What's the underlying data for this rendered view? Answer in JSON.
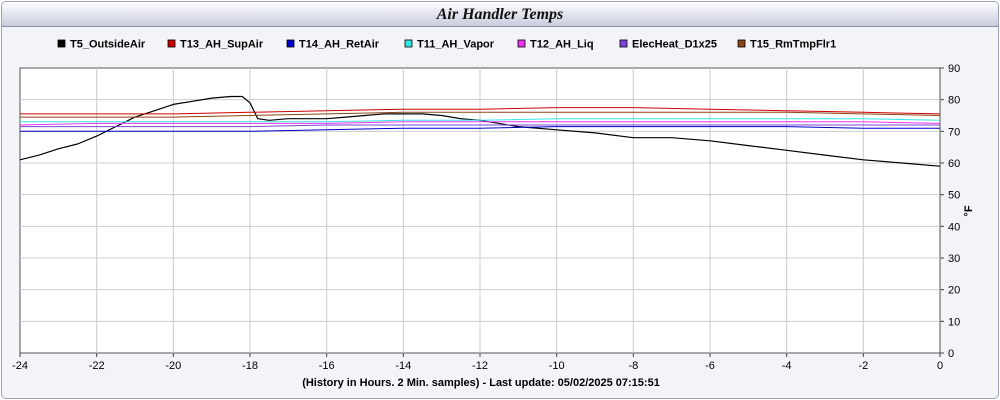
{
  "title": "Air Handler Temps",
  "chart_data": {
    "type": "line",
    "title": "Air Handler Temps",
    "xlabel": "(History in Hours. 2 Min. samples) - Last update: 05/02/2025 07:15:51",
    "ylabel": "°F",
    "xlim": [
      -24,
      0
    ],
    "ylim": [
      0,
      90
    ],
    "x_ticks": [
      "-24",
      "-22",
      "-20",
      "-18",
      "-16",
      "-14",
      "-12",
      "-10",
      "-8",
      "-6",
      "-4",
      "-2",
      "0"
    ],
    "y_ticks": [
      "0",
      "10",
      "20",
      "30",
      "40",
      "50",
      "60",
      "70",
      "80",
      "90"
    ],
    "grid": true,
    "legend_position": "top",
    "series": [
      {
        "name": "T5_OutsideAir",
        "color": "#000000",
        "x": [
          -24,
          -23.5,
          -23,
          -22.5,
          -22,
          -21.5,
          -21,
          -20.5,
          -20,
          -19.5,
          -19,
          -18.5,
          -18.2,
          -18,
          -17.8,
          -17.5,
          -17,
          -16.5,
          -16,
          -15.5,
          -15,
          -14.5,
          -14,
          -13.5,
          -13,
          -12.5,
          -12,
          -11,
          -10,
          -9,
          -8,
          -7,
          -6,
          -5,
          -4,
          -3,
          -2,
          -1,
          0
        ],
        "y": [
          61,
          62.5,
          64.5,
          66,
          68.5,
          71.5,
          74.5,
          76.5,
          78.5,
          79.5,
          80.5,
          81,
          81,
          79,
          74,
          73.5,
          74,
          74,
          74,
          74.5,
          75,
          75.5,
          75.5,
          75.5,
          75,
          74,
          73.5,
          71.5,
          70.5,
          69.5,
          68,
          68,
          67,
          65.5,
          64,
          62.5,
          61,
          60,
          59
        ]
      },
      {
        "name": "T13_AH_SupAir",
        "color": "#cc0000",
        "x": [
          -24,
          -22,
          -20,
          -18,
          -16,
          -14,
          -12,
          -10,
          -8,
          -6,
          -4,
          -2,
          0
        ],
        "y": [
          75.5,
          75.5,
          75.5,
          76,
          76.5,
          77,
          77,
          77.5,
          77.5,
          77,
          76.5,
          76,
          75.5
        ]
      },
      {
        "name": "T14_AH_RetAir",
        "color": "#0000cc",
        "x": [
          -24,
          -22,
          -20,
          -18,
          -16,
          -14,
          -12,
          -10,
          -8,
          -6,
          -4,
          -2,
          0
        ],
        "y": [
          70,
          70,
          70,
          70,
          70.5,
          71,
          71,
          71.5,
          71.5,
          71.5,
          71.5,
          71,
          71
        ]
      },
      {
        "name": "T11_AH_Vapor",
        "color": "#33e6e6",
        "x": [
          -24,
          -22,
          -20,
          -18,
          -16,
          -14,
          -12,
          -10,
          -8,
          -6,
          -4,
          -2,
          0
        ],
        "y": [
          73,
          73,
          73,
          73,
          73,
          73.5,
          73.5,
          74,
          74,
          74,
          74,
          74,
          73.5
        ]
      },
      {
        "name": "T12_AH_Liq",
        "color": "#ee33ee",
        "x": [
          -24,
          -22,
          -20,
          -18,
          -16,
          -14,
          -12,
          -10,
          -8,
          -6,
          -4,
          -2,
          0
        ],
        "y": [
          72,
          72.5,
          72.5,
          72.5,
          72.5,
          73,
          73,
          73,
          73,
          73,
          73,
          73,
          72.5
        ]
      },
      {
        "name": "ElecHeat_D1x25",
        "color": "#7744dd",
        "x": [
          -24,
          -22,
          -20,
          -18,
          -16,
          -14,
          -12,
          -10,
          -8,
          -6,
          -4,
          -2,
          0
        ],
        "y": [
          71.5,
          71.5,
          71.5,
          71.5,
          72,
          72,
          72,
          72,
          72,
          72,
          72,
          72,
          72
        ]
      },
      {
        "name": "T15_RmTmpFlr1",
        "color": "#8b4513",
        "x": [
          -24,
          -22,
          -20,
          -18,
          -16,
          -14,
          -12,
          -10,
          -8,
          -6,
          -4,
          -2,
          0
        ],
        "y": [
          74.5,
          74.5,
          74.5,
          75,
          75.5,
          76,
          76,
          76,
          76,
          76,
          76,
          75.5,
          75
        ]
      }
    ]
  }
}
